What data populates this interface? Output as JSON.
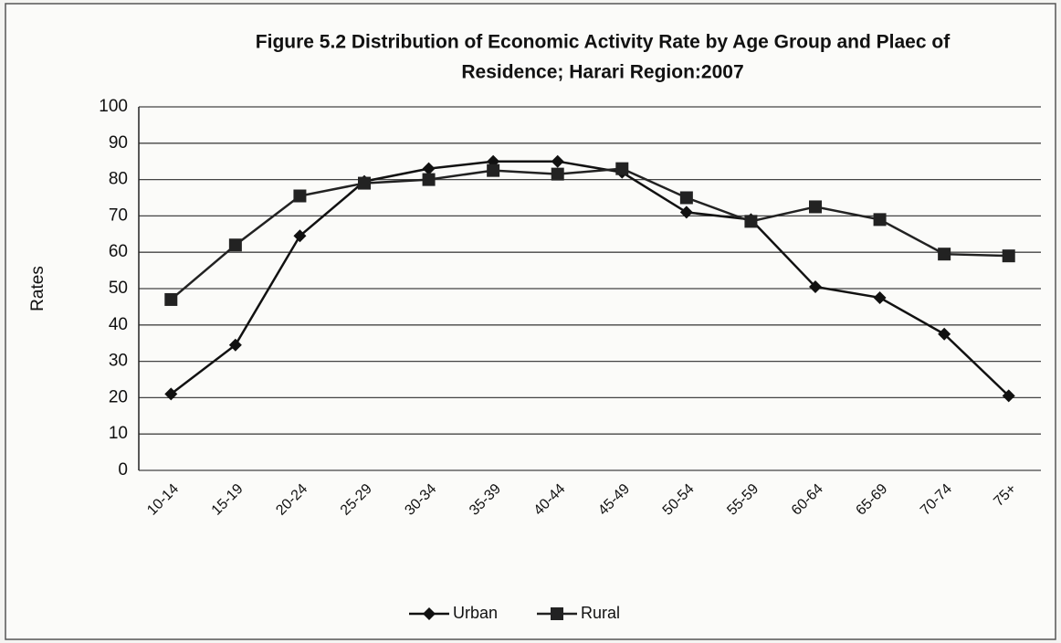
{
  "chart_data": {
    "type": "line",
    "title": [
      "Figure 5.2 Distribution of Economic Activity Rate by Age Group and Plaec of",
      "Residence; Harari Region:2007"
    ],
    "y_label": "Rates",
    "categories": [
      "10-14",
      "15-19",
      "20-24",
      "25-29",
      "30-34",
      "35-39",
      "40-44",
      "45-49",
      "50-54",
      "55-59",
      "60-64",
      "65-69",
      "70-74",
      "75+"
    ],
    "series": [
      {
        "name": "Urban",
        "color": "#111111",
        "marker": "diamond",
        "values": [
          21,
          34.5,
          64.5,
          79.5,
          83,
          85,
          85,
          82,
          71,
          69,
          50.5,
          47.5,
          37.5,
          20.5
        ]
      },
      {
        "name": "Rural",
        "color": "#222222",
        "marker": "square",
        "values": [
          47,
          62,
          75.5,
          79,
          80,
          82.5,
          81.5,
          83,
          75,
          68.5,
          72.5,
          69,
          59.5,
          59
        ]
      }
    ],
    "ylim": [
      0,
      100
    ],
    "yticks": [
      0,
      10,
      20,
      30,
      40,
      50,
      60,
      70,
      80,
      90,
      100
    ],
    "grid": true,
    "legend": "bottom"
  }
}
